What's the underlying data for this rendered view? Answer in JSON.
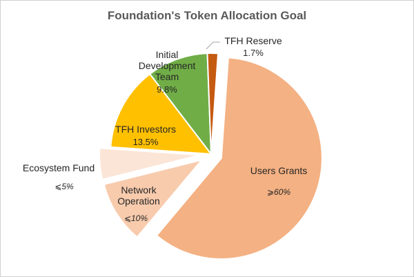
{
  "chart_data": {
    "type": "pie",
    "title": "Foundation's Token Allocation Goal",
    "slices": [
      {
        "label": "Users Grants",
        "value": 60,
        "value_label": "⩾60%",
        "color": "#F4B183",
        "exploded": true
      },
      {
        "label": "Network Operation",
        "label_lines": [
          "Network",
          "Operation"
        ],
        "value": 10,
        "value_label": "⩽10%",
        "color": "#F8CBAD",
        "exploded": true
      },
      {
        "label": "Ecosystem Fund",
        "value": 5,
        "value_label": "⩽5%",
        "color": "#FBE5D6",
        "exploded": true
      },
      {
        "label": "TFH Investors",
        "value": 13.5,
        "value_label": "13.5%",
        "color": "#FFC000",
        "exploded": false
      },
      {
        "label": "Initial Development Team",
        "label_lines": [
          "Initial",
          "Development",
          "Team"
        ],
        "value": 9.8,
        "value_label": "9.8%",
        "color": "#70AD47",
        "exploded": false
      },
      {
        "label": "TFH Reserve",
        "value": 1.7,
        "value_label": "1.7%",
        "color": "#C55A11",
        "exploded": false
      }
    ],
    "legend": "none"
  }
}
